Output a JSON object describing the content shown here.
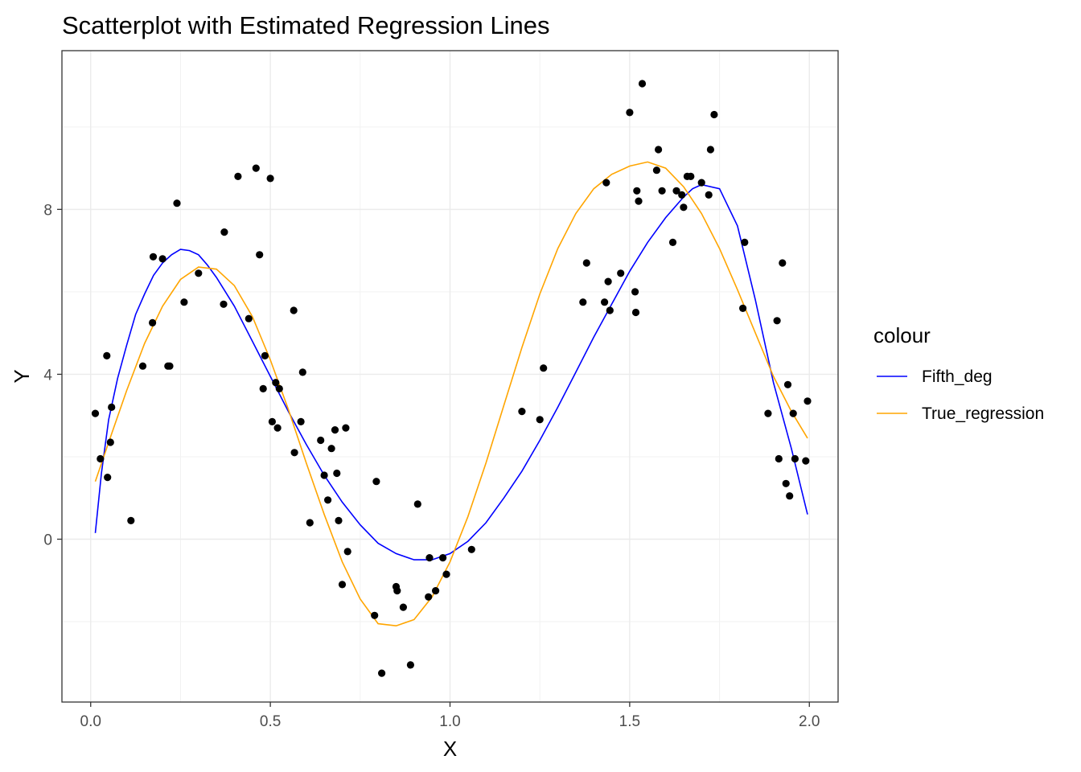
{
  "chart_data": {
    "type": "scatter",
    "title": "Scatterplot with Estimated Regression Lines",
    "xlabel": "X",
    "ylabel": "Y",
    "xlim": [
      -0.08,
      2.08
    ],
    "ylim": [
      -3.95,
      11.85
    ],
    "x_ticks": [
      0.0,
      0.5,
      1.0,
      1.5,
      2.0
    ],
    "x_tick_labels": [
      "0.0",
      "0.5",
      "1.0",
      "1.5",
      "2.0"
    ],
    "y_ticks": [
      0,
      4,
      8
    ],
    "y_tick_labels": [
      "0",
      "4",
      "8"
    ],
    "grid": true,
    "legend": {
      "title": "colour",
      "position": "right",
      "entries": [
        {
          "label": "Fifth_deg",
          "color": "#0000ff"
        },
        {
          "label": "True_regression",
          "color": "#ffa500"
        }
      ]
    },
    "points": {
      "color": "#000000",
      "x": [
        0.013,
        0.027,
        0.045,
        0.047,
        0.055,
        0.058,
        0.112,
        0.145,
        0.172,
        0.174,
        0.2,
        0.215,
        0.22,
        0.24,
        0.26,
        0.3,
        0.37,
        0.372,
        0.41,
        0.44,
        0.46,
        0.47,
        0.48,
        0.485,
        0.5,
        0.505,
        0.515,
        0.52,
        0.525,
        0.565,
        0.567,
        0.585,
        0.59,
        0.61,
        0.64,
        0.65,
        0.66,
        0.67,
        0.68,
        0.685,
        0.69,
        0.7,
        0.71,
        0.715,
        0.79,
        0.795,
        0.81,
        0.85,
        0.853,
        0.87,
        0.89,
        0.91,
        0.94,
        0.943,
        0.96,
        0.98,
        0.99,
        1.06,
        1.2,
        1.25,
        1.26,
        1.37,
        1.38,
        1.43,
        1.435,
        1.44,
        1.445,
        1.475,
        1.5,
        1.515,
        1.517,
        1.52,
        1.525,
        1.535,
        1.575,
        1.58,
        1.59,
        1.62,
        1.63,
        1.645,
        1.65,
        1.66,
        1.67,
        1.7,
        1.72,
        1.725,
        1.735,
        1.815,
        1.82,
        1.885,
        1.91,
        1.915,
        1.925,
        1.935,
        1.94,
        1.945,
        1.955,
        1.96,
        1.99,
        1.995
      ],
      "y": [
        3.05,
        1.95,
        4.45,
        1.5,
        2.35,
        3.2,
        0.45,
        4.2,
        5.25,
        6.85,
        6.8,
        4.2,
        4.2,
        8.15,
        5.75,
        6.45,
        5.7,
        7.45,
        8.8,
        5.35,
        9.0,
        6.9,
        3.65,
        4.45,
        8.75,
        2.85,
        3.8,
        2.7,
        3.65,
        5.55,
        2.1,
        2.85,
        4.05,
        0.4,
        2.4,
        1.55,
        0.95,
        2.2,
        2.65,
        1.6,
        0.45,
        -1.1,
        2.7,
        -0.3,
        -1.85,
        1.4,
        -3.25,
        -1.15,
        -1.25,
        -1.65,
        -3.05,
        0.85,
        -1.4,
        -0.45,
        -1.25,
        -0.45,
        -0.85,
        -0.25,
        3.1,
        2.9,
        4.15,
        5.75,
        6.7,
        5.75,
        8.65,
        6.25,
        5.55,
        6.45,
        10.35,
        6.0,
        5.5,
        8.45,
        8.2,
        11.05,
        8.95,
        9.45,
        8.45,
        7.2,
        8.45,
        8.35,
        8.05,
        8.8,
        8.8,
        8.65,
        8.35,
        9.45,
        10.3,
        5.6,
        7.2,
        3.05,
        5.3,
        1.95,
        6.7,
        1.35,
        3.75,
        1.05,
        3.05,
        1.95,
        1.9,
        3.35
      ]
    },
    "series": [
      {
        "name": "Fifth_deg",
        "color": "#0000ff",
        "x": [
          0.013,
          0.03,
          0.05,
          0.075,
          0.1,
          0.125,
          0.15,
          0.175,
          0.2,
          0.225,
          0.25,
          0.275,
          0.3,
          0.325,
          0.35,
          0.375,
          0.4,
          0.45,
          0.5,
          0.55,
          0.6,
          0.65,
          0.7,
          0.75,
          0.8,
          0.85,
          0.9,
          0.95,
          1.0,
          1.05,
          1.1,
          1.15,
          1.2,
          1.25,
          1.3,
          1.35,
          1.4,
          1.45,
          1.5,
          1.55,
          1.6,
          1.65,
          1.675,
          1.7,
          1.75,
          1.8,
          1.85,
          1.9,
          1.95,
          1.995
        ],
        "y": [
          0.15,
          1.6,
          2.9,
          3.9,
          4.7,
          5.45,
          5.95,
          6.4,
          6.7,
          6.9,
          7.03,
          7.0,
          6.9,
          6.65,
          6.35,
          6.0,
          5.65,
          4.8,
          3.95,
          3.1,
          2.3,
          1.55,
          0.9,
          0.35,
          -0.1,
          -0.35,
          -0.5,
          -0.5,
          -0.35,
          -0.05,
          0.4,
          1.0,
          1.65,
          2.4,
          3.2,
          4.05,
          4.9,
          5.7,
          6.5,
          7.2,
          7.8,
          8.3,
          8.5,
          8.6,
          8.5,
          7.6,
          5.8,
          3.8,
          2.2,
          0.6
        ]
      },
      {
        "name": "True_regression",
        "color": "#ffa500",
        "x": [
          0.013,
          0.05,
          0.1,
          0.15,
          0.2,
          0.25,
          0.3,
          0.35,
          0.4,
          0.45,
          0.5,
          0.55,
          0.6,
          0.65,
          0.7,
          0.75,
          0.8,
          0.85,
          0.9,
          0.95,
          1.0,
          1.05,
          1.1,
          1.15,
          1.2,
          1.25,
          1.3,
          1.35,
          1.4,
          1.45,
          1.5,
          1.55,
          1.6,
          1.65,
          1.7,
          1.75,
          1.8,
          1.85,
          1.9,
          1.95,
          1.995
        ],
        "y": [
          1.4,
          2.35,
          3.6,
          4.75,
          5.65,
          6.3,
          6.6,
          6.55,
          6.15,
          5.4,
          4.35,
          3.15,
          1.85,
          0.6,
          -0.55,
          -1.45,
          -2.05,
          -2.1,
          -1.95,
          -1.4,
          -0.55,
          0.55,
          1.85,
          3.25,
          4.65,
          5.95,
          7.05,
          7.9,
          8.5,
          8.85,
          9.05,
          9.15,
          9.0,
          8.55,
          7.9,
          7.05,
          6.05,
          5.0,
          3.95,
          3.1,
          2.45
        ]
      }
    ]
  }
}
